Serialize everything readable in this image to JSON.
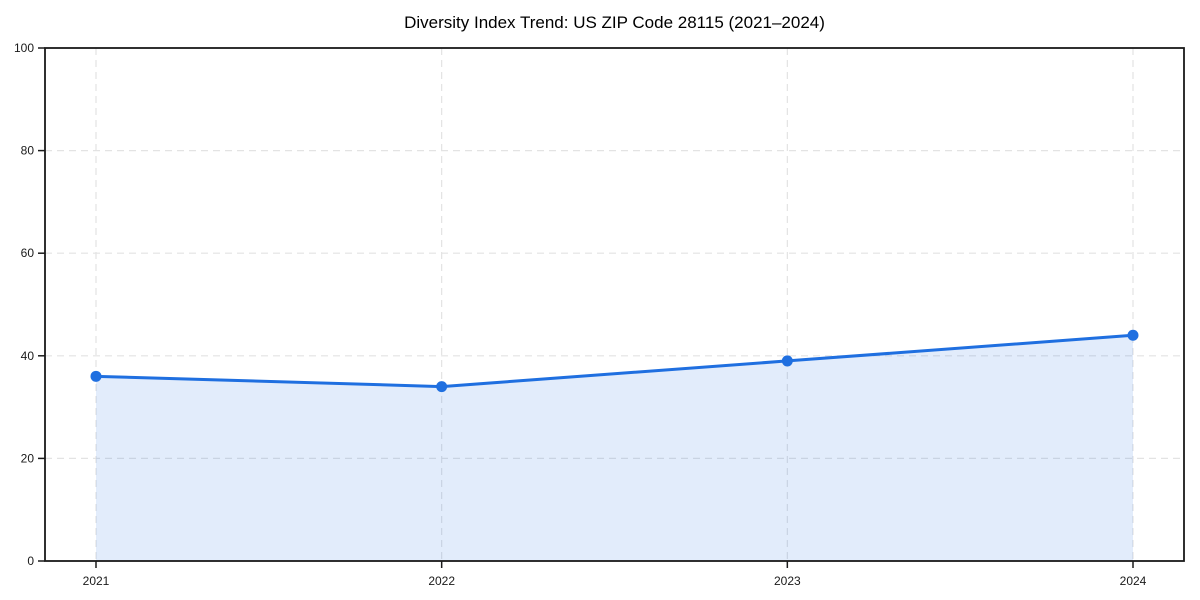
{
  "title": "Diversity Index Trend: US ZIP Code 28115 (2021–2024)",
  "chart_data": {
    "type": "line",
    "title": "Diversity Index Trend: US ZIP Code 28115 (2021–2024)",
    "x": [
      "2021",
      "2022",
      "2023",
      "2024"
    ],
    "series": [
      {
        "name": "Diversity Index",
        "values": [
          36,
          34,
          39,
          44
        ]
      }
    ],
    "xlabel": "",
    "ylabel": "",
    "ylim": [
      0,
      100
    ],
    "yticks": [
      0,
      20,
      40,
      60,
      80,
      100
    ],
    "grid": true,
    "grid_style": "dashed",
    "legend_position": "none",
    "marker": "circle",
    "area_fill": true,
    "colors": {
      "line": "#1f6fe0",
      "marker": "#1f6fe0",
      "area": "#1f6fe0",
      "area_opacity": 0.13,
      "grid": "#e3e3e3",
      "spine": "#1a1a1a",
      "text": "#1a1a1a",
      "background": "#ffffff"
    }
  }
}
